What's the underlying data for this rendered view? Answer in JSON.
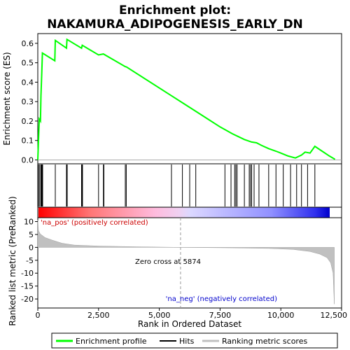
{
  "chart_data": {
    "type": "line",
    "title": "Enrichment plot:\nNAKAMURA_ADIPOGENESIS_EARLY_DN",
    "title_lines": [
      "Enrichment plot:",
      "NAKAMURA_ADIPOGENESIS_EARLY_DN"
    ],
    "top_panel": {
      "ylabel": "Enrichment score (ES)",
      "ylim": [
        -0.02,
        0.65
      ],
      "yticks": [
        0.0,
        0.1,
        0.2,
        0.3,
        0.4,
        0.5,
        0.6
      ],
      "ytick_labels": [
        "0.0",
        "0.1",
        "0.2",
        "0.3",
        "0.4",
        "0.5",
        "0.6"
      ],
      "series_color": "#00ff00",
      "es_points": [
        [
          0,
          0.0
        ],
        [
          60,
          0.21
        ],
        [
          110,
          0.2
        ],
        [
          130,
          0.33
        ],
        [
          160,
          0.44
        ],
        [
          190,
          0.55
        ],
        [
          700,
          0.51
        ],
        [
          720,
          0.615
        ],
        [
          1180,
          0.575
        ],
        [
          1200,
          0.62
        ],
        [
          1800,
          0.575
        ],
        [
          1830,
          0.59
        ],
        [
          2500,
          0.54
        ],
        [
          2700,
          0.545
        ],
        [
          3600,
          0.48
        ],
        [
          3650,
          0.478
        ],
        [
          5500,
          0.33
        ],
        [
          6000,
          0.29
        ],
        [
          6500,
          0.25
        ],
        [
          7000,
          0.21
        ],
        [
          7500,
          0.17
        ],
        [
          8000,
          0.135
        ],
        [
          8200,
          0.123
        ],
        [
          8500,
          0.105
        ],
        [
          8800,
          0.092
        ],
        [
          9000,
          0.088
        ],
        [
          9200,
          0.075
        ],
        [
          9500,
          0.058
        ],
        [
          9800,
          0.045
        ],
        [
          10000,
          0.035
        ],
        [
          10300,
          0.02
        ],
        [
          10600,
          0.01
        ],
        [
          10850,
          0.025
        ],
        [
          11000,
          0.04
        ],
        [
          11200,
          0.035
        ],
        [
          11400,
          0.07
        ],
        [
          11700,
          0.045
        ],
        [
          12000,
          0.02
        ],
        [
          12230,
          0.003
        ]
      ]
    },
    "hits": [
      30,
      80,
      130,
      150,
      175,
      200,
      720,
      1180,
      1200,
      1210,
      1800,
      1820,
      1840,
      2500,
      2700,
      2720,
      3600,
      3640,
      5500,
      5950,
      6250,
      6500,
      7700,
      7950,
      8100,
      8150,
      8200,
      8500,
      8700,
      8750,
      8800,
      8900,
      9100,
      9500,
      9800,
      10100,
      10400,
      10650,
      10850,
      11100,
      11400
    ],
    "bottom_panel": {
      "ylabel": "Ranked list metric (PreRanked)",
      "ylim": [
        -23.5,
        11.5
      ],
      "yticks": [
        10,
        5,
        0,
        -5,
        -10,
        -15,
        -20
      ],
      "ytick_labels": [
        "10",
        "5",
        "0",
        "-5",
        "-10",
        "-15",
        "-20"
      ],
      "metric_points": [
        [
          0,
          10.5
        ],
        [
          30,
          6.5
        ],
        [
          100,
          5.2
        ],
        [
          300,
          3.8
        ],
        [
          600,
          2.8
        ],
        [
          1000,
          1.6
        ],
        [
          1500,
          0.9
        ],
        [
          2500,
          0.5
        ],
        [
          4000,
          0.25
        ],
        [
          5874,
          0.0
        ],
        [
          8000,
          -0.2
        ],
        [
          9500,
          -0.4
        ],
        [
          10500,
          -0.8
        ],
        [
          11200,
          -1.6
        ],
        [
          11600,
          -2.6
        ],
        [
          11900,
          -4.0
        ],
        [
          12050,
          -6.0
        ],
        [
          12150,
          -10.0
        ],
        [
          12200,
          -22.0
        ]
      ],
      "annotations": {
        "pos_label": "'na_pos' (positively correlated)",
        "neg_label": "'na_neg' (negatively correlated)",
        "zero_cross": "Zero cross at 5874"
      },
      "zero_cross": 5874
    },
    "xlabel": "Rank in Ordered Dataset",
    "xlim": [
      0,
      12500
    ],
    "xticks": [
      0,
      2500,
      5000,
      7500,
      10000,
      12500
    ],
    "xtick_labels": [
      "0",
      "2,500",
      "5,000",
      "7,500",
      "10,000",
      "12,500"
    ],
    "x_max_rank": 12230,
    "legend": {
      "placement": "bottom",
      "entries": [
        {
          "label": "Enrichment profile",
          "color": "#00ff00"
        },
        {
          "label": "Hits",
          "color": "#000000"
        },
        {
          "label": "Ranking metric scores",
          "color": "#c0c0c0"
        }
      ]
    },
    "colors": {
      "bar_pos": "#ff0000",
      "bar_neg": "#0000ff",
      "metric_fill": "#c0c0c0",
      "pos_text": "#cc0000",
      "neg_text": "#0000cc"
    }
  }
}
